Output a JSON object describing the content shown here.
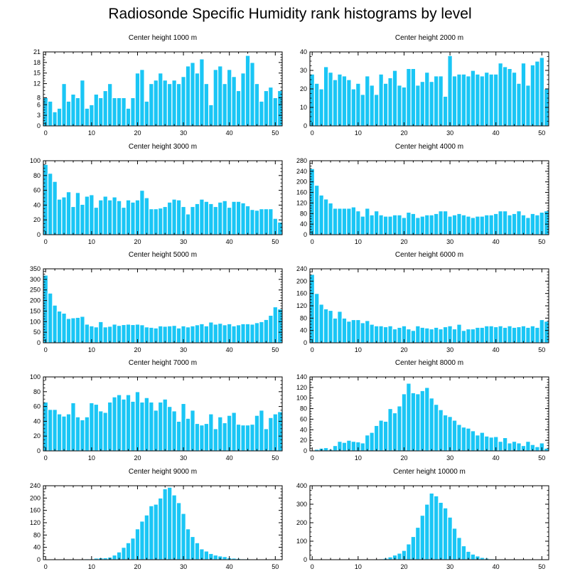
{
  "title": "Radiosonde Specific Humidity rank histograms by level",
  "colors": {
    "bar": "#1AC6F5",
    "bar_stroke": "#ffffff",
    "axis": "#000000"
  },
  "chart_data": [
    {
      "type": "bar",
      "title": "Center height 1000 m",
      "xlabel": "",
      "ylabel": "",
      "xlim": [
        -0.5,
        51.5
      ],
      "ylim": [
        0,
        21
      ],
      "xticks": [
        0,
        10,
        20,
        30,
        40,
        50
      ],
      "yticks": [
        0,
        3,
        6,
        8,
        12,
        15,
        18,
        21
      ],
      "ytick_labels": [
        "0",
        "3",
        "6",
        "8",
        "12",
        "15",
        "18",
        "21"
      ],
      "x": [
        0,
        1,
        2,
        3,
        4,
        5,
        6,
        7,
        8,
        9,
        10,
        11,
        12,
        13,
        14,
        15,
        16,
        17,
        18,
        19,
        20,
        21,
        22,
        23,
        24,
        25,
        26,
        27,
        28,
        29,
        30,
        31,
        32,
        33,
        34,
        35,
        36,
        37,
        38,
        39,
        40,
        41,
        42,
        43,
        44,
        45,
        46,
        47,
        48,
        49,
        50,
        51
      ],
      "values": [
        8,
        7,
        4,
        5,
        12,
        7,
        9,
        8,
        13,
        5,
        6,
        9,
        8,
        10,
        12,
        8,
        8,
        8,
        5,
        8,
        15,
        16,
        7,
        12,
        13,
        15,
        13,
        12,
        13,
        12,
        14,
        17,
        18,
        15,
        19,
        12,
        6,
        16,
        17,
        12,
        16,
        14,
        10,
        15,
        20,
        18,
        12,
        7,
        10,
        11,
        8,
        10
      ]
    },
    {
      "type": "bar",
      "title": "Center height 2000 m",
      "xlabel": "",
      "ylabel": "",
      "xlim": [
        -0.5,
        51.5
      ],
      "ylim": [
        0,
        40
      ],
      "xticks": [
        0,
        10,
        20,
        30,
        40,
        50
      ],
      "yticks": [
        0,
        10,
        20,
        30,
        40
      ],
      "ytick_labels": [
        "0",
        "10",
        "20",
        "30",
        "40"
      ],
      "x": [
        0,
        1,
        2,
        3,
        4,
        5,
        6,
        7,
        8,
        9,
        10,
        11,
        12,
        13,
        14,
        15,
        16,
        17,
        18,
        19,
        20,
        21,
        22,
        23,
        24,
        25,
        26,
        27,
        28,
        29,
        30,
        31,
        32,
        33,
        34,
        35,
        36,
        37,
        38,
        39,
        40,
        41,
        42,
        43,
        44,
        45,
        46,
        47,
        48,
        49,
        50,
        51
      ],
      "values": [
        28,
        23,
        20,
        32,
        29,
        25,
        28,
        27,
        25,
        20,
        23,
        17,
        27,
        22,
        17,
        28,
        23,
        26,
        30,
        22,
        21,
        31,
        31,
        22,
        24,
        29,
        24,
        27,
        27,
        16,
        38,
        27,
        28,
        28,
        27,
        30,
        28,
        27,
        29,
        28,
        28,
        34,
        32,
        31,
        29,
        23,
        34,
        22,
        33,
        35,
        37,
        20
      ]
    },
    {
      "type": "bar",
      "title": "Center height 3000 m",
      "xlabel": "",
      "ylabel": "",
      "xlim": [
        -0.5,
        51.5
      ],
      "ylim": [
        0,
        100
      ],
      "xticks": [
        0,
        10,
        20,
        30,
        40,
        50
      ],
      "yticks": [
        0,
        20,
        40,
        60,
        80,
        100
      ],
      "ytick_labels": [
        "0",
        "20",
        "40",
        "60",
        "80",
        "100"
      ],
      "x": [
        0,
        1,
        2,
        3,
        4,
        5,
        6,
        7,
        8,
        9,
        10,
        11,
        12,
        13,
        14,
        15,
        16,
        17,
        18,
        19,
        20,
        21,
        22,
        23,
        24,
        25,
        26,
        27,
        28,
        29,
        30,
        31,
        32,
        33,
        34,
        35,
        36,
        37,
        38,
        39,
        40,
        41,
        42,
        43,
        44,
        45,
        46,
        47,
        48,
        49,
        50,
        51
      ],
      "values": [
        95,
        83,
        72,
        48,
        51,
        58,
        38,
        57,
        41,
        52,
        54,
        37,
        47,
        52,
        47,
        51,
        46,
        37,
        47,
        44,
        47,
        60,
        50,
        35,
        35,
        36,
        38,
        44,
        48,
        47,
        38,
        28,
        38,
        42,
        48,
        45,
        42,
        38,
        44,
        46,
        37,
        45,
        45,
        43,
        39,
        34,
        33,
        35,
        35,
        35,
        22,
        17
      ]
    },
    {
      "type": "bar",
      "title": "Center height 4000 m",
      "xlabel": "",
      "ylabel": "",
      "xlim": [
        -0.5,
        51.5
      ],
      "ylim": [
        0,
        280
      ],
      "xticks": [
        0,
        10,
        20,
        30,
        40,
        50
      ],
      "yticks": [
        0,
        40,
        80,
        120,
        160,
        200,
        240,
        280
      ],
      "ytick_labels": [
        "0",
        "40",
        "80",
        "120",
        "160",
        "200",
        "240",
        "280"
      ],
      "x": [
        0,
        1,
        2,
        3,
        4,
        5,
        6,
        7,
        8,
        9,
        10,
        11,
        12,
        13,
        14,
        15,
        16,
        17,
        18,
        19,
        20,
        21,
        22,
        23,
        24,
        25,
        26,
        27,
        28,
        29,
        30,
        31,
        32,
        33,
        34,
        35,
        36,
        37,
        38,
        39,
        40,
        41,
        42,
        43,
        44,
        45,
        46,
        47,
        48,
        49,
        50,
        51
      ],
      "values": [
        250,
        187,
        150,
        135,
        120,
        100,
        100,
        100,
        100,
        105,
        90,
        70,
        100,
        75,
        90,
        75,
        70,
        70,
        75,
        75,
        65,
        85,
        80,
        65,
        70,
        75,
        75,
        80,
        90,
        90,
        70,
        75,
        80,
        75,
        70,
        65,
        70,
        70,
        75,
        75,
        80,
        90,
        90,
        75,
        80,
        90,
        75,
        65,
        80,
        75,
        85,
        90
      ]
    },
    {
      "type": "bar",
      "title": "Center height 5000 m",
      "xlabel": "",
      "ylabel": "",
      "xlim": [
        -0.5,
        51.5
      ],
      "ylim": [
        0,
        350
      ],
      "xticks": [
        0,
        10,
        20,
        30,
        40,
        50
      ],
      "yticks": [
        0,
        50,
        100,
        150,
        200,
        250,
        300,
        350
      ],
      "ytick_labels": [
        "0",
        "50",
        "100",
        "150",
        "200",
        "250",
        "300",
        "350"
      ],
      "x": [
        0,
        1,
        2,
        3,
        4,
        5,
        6,
        7,
        8,
        9,
        10,
        11,
        12,
        13,
        14,
        15,
        16,
        17,
        18,
        19,
        20,
        21,
        22,
        23,
        24,
        25,
        26,
        27,
        28,
        29,
        30,
        31,
        32,
        33,
        34,
        35,
        36,
        37,
        38,
        39,
        40,
        41,
        42,
        43,
        44,
        45,
        46,
        47,
        48,
        49,
        50,
        51
      ],
      "values": [
        320,
        235,
        178,
        150,
        140,
        115,
        118,
        120,
        125,
        88,
        80,
        75,
        100,
        75,
        78,
        88,
        82,
        86,
        88,
        86,
        88,
        85,
        75,
        73,
        70,
        80,
        78,
        80,
        82,
        70,
        80,
        75,
        80,
        85,
        90,
        80,
        98,
        88,
        92,
        85,
        90,
        80,
        85,
        90,
        90,
        88,
        95,
        100,
        110,
        130,
        170,
        160
      ]
    },
    {
      "type": "bar",
      "title": "Center height 6000 m",
      "xlabel": "",
      "ylabel": "",
      "xlim": [
        -0.5,
        51.5
      ],
      "ylim": [
        0,
        240
      ],
      "xticks": [
        0,
        10,
        20,
        30,
        40,
        50
      ],
      "yticks": [
        0,
        40,
        80,
        120,
        160,
        200,
        240
      ],
      "ytick_labels": [
        "0",
        "40",
        "80",
        "120",
        "160",
        "200",
        "240"
      ],
      "x": [
        0,
        1,
        2,
        3,
        4,
        5,
        6,
        7,
        8,
        9,
        10,
        11,
        12,
        13,
        14,
        15,
        16,
        17,
        18,
        19,
        20,
        21,
        22,
        23,
        24,
        25,
        26,
        27,
        28,
        29,
        30,
        31,
        32,
        33,
        34,
        35,
        36,
        37,
        38,
        39,
        40,
        41,
        42,
        43,
        44,
        45,
        46,
        47,
        48,
        49,
        50,
        51
      ],
      "values": [
        222,
        160,
        125,
        110,
        105,
        80,
        102,
        80,
        70,
        75,
        75,
        65,
        72,
        60,
        55,
        55,
        52,
        55,
        45,
        50,
        55,
        45,
        40,
        55,
        50,
        48,
        45,
        50,
        45,
        52,
        55,
        45,
        60,
        40,
        45,
        45,
        50,
        50,
        55,
        55,
        52,
        55,
        50,
        55,
        50,
        52,
        55,
        50,
        55,
        50,
        75,
        70
      ]
    },
    {
      "type": "bar",
      "title": "Center height 7000 m",
      "xlabel": "",
      "ylabel": "",
      "xlim": [
        -0.5,
        51.5
      ],
      "ylim": [
        0,
        100
      ],
      "xticks": [
        0,
        10,
        20,
        30,
        40,
        50
      ],
      "yticks": [
        0,
        20,
        40,
        60,
        80,
        100
      ],
      "ytick_labels": [
        "0",
        "20",
        "40",
        "60",
        "80",
        "100"
      ],
      "x": [
        0,
        1,
        2,
        3,
        4,
        5,
        6,
        7,
        8,
        9,
        10,
        11,
        12,
        13,
        14,
        15,
        16,
        17,
        18,
        19,
        20,
        21,
        22,
        23,
        24,
        25,
        26,
        27,
        28,
        29,
        30,
        31,
        32,
        33,
        34,
        35,
        36,
        37,
        38,
        39,
        40,
        41,
        42,
        43,
        44,
        45,
        46,
        47,
        48,
        49,
        50,
        51
      ],
      "values": [
        66,
        56,
        56,
        50,
        47,
        50,
        65,
        46,
        42,
        46,
        65,
        63,
        54,
        52,
        66,
        73,
        76,
        70,
        76,
        67,
        80,
        66,
        72,
        66,
        55,
        66,
        70,
        60,
        54,
        40,
        64,
        44,
        55,
        37,
        35,
        37,
        50,
        30,
        46,
        38,
        48,
        52,
        36,
        35,
        35,
        36,
        48,
        55,
        30,
        45,
        50,
        53
      ]
    },
    {
      "type": "bar",
      "title": "Center height 8000 m",
      "xlabel": "",
      "ylabel": "",
      "xlim": [
        -0.5,
        51.5
      ],
      "ylim": [
        0,
        140
      ],
      "xticks": [
        0,
        10,
        20,
        30,
        40,
        50
      ],
      "yticks": [
        0,
        20,
        40,
        60,
        80,
        100,
        120,
        140
      ],
      "ytick_labels": [
        "0",
        "20",
        "40",
        "60",
        "80",
        "100",
        "120",
        "140"
      ],
      "x": [
        0,
        1,
        2,
        3,
        4,
        5,
        6,
        7,
        8,
        9,
        10,
        11,
        12,
        13,
        14,
        15,
        16,
        17,
        18,
        19,
        20,
        21,
        22,
        23,
        24,
        25,
        26,
        27,
        28,
        29,
        30,
        31,
        32,
        33,
        34,
        35,
        36,
        37,
        38,
        39,
        40,
        41,
        42,
        43,
        44,
        45,
        46,
        47,
        48,
        49,
        50,
        51
      ],
      "values": [
        0,
        3,
        5,
        6,
        3,
        10,
        18,
        16,
        20,
        18,
        17,
        15,
        30,
        35,
        48,
        58,
        56,
        80,
        72,
        85,
        108,
        128,
        110,
        108,
        114,
        120,
        100,
        88,
        78,
        68,
        65,
        58,
        50,
        45,
        43,
        38,
        30,
        35,
        28,
        26,
        27,
        18,
        25,
        15,
        18,
        15,
        10,
        18,
        12,
        8,
        15,
        5
      ]
    },
    {
      "type": "bar",
      "title": "Center height 9000 m",
      "xlabel": "",
      "ylabel": "",
      "xlim": [
        -0.5,
        51.5
      ],
      "ylim": [
        0,
        240
      ],
      "xticks": [
        0,
        10,
        20,
        30,
        40,
        50
      ],
      "yticks": [
        0,
        40,
        80,
        120,
        160,
        200,
        240
      ],
      "ytick_labels": [
        "0",
        "40",
        "80",
        "120",
        "160",
        "200",
        "240"
      ],
      "x": [
        0,
        1,
        2,
        3,
        4,
        5,
        6,
        7,
        8,
        9,
        10,
        11,
        12,
        13,
        14,
        15,
        16,
        17,
        18,
        19,
        20,
        21,
        22,
        23,
        24,
        25,
        26,
        27,
        28,
        29,
        30,
        31,
        32,
        33,
        34,
        35,
        36,
        37,
        38,
        39,
        40,
        41,
        42,
        43,
        44,
        45,
        46,
        47,
        48,
        49,
        50,
        51
      ],
      "values": [
        2,
        2,
        2,
        2,
        2,
        2,
        2,
        2,
        2,
        3,
        3,
        5,
        6,
        6,
        8,
        15,
        25,
        40,
        55,
        70,
        100,
        125,
        145,
        175,
        180,
        200,
        230,
        235,
        210,
        185,
        150,
        100,
        75,
        55,
        35,
        28,
        20,
        15,
        12,
        10,
        6,
        5,
        4,
        3,
        3,
        2,
        2,
        2,
        2,
        2,
        2,
        2
      ]
    },
    {
      "type": "bar",
      "title": "Center height 10000 m",
      "xlabel": "",
      "ylabel": "",
      "xlim": [
        -0.5,
        51.5
      ],
      "ylim": [
        0,
        400
      ],
      "xticks": [
        0,
        10,
        20,
        30,
        40,
        50
      ],
      "yticks": [
        0,
        100,
        200,
        300,
        400
      ],
      "ytick_labels": [
        "0",
        "100",
        "200",
        "300",
        "400"
      ],
      "x": [
        0,
        1,
        2,
        3,
        4,
        5,
        6,
        7,
        8,
        9,
        10,
        11,
        12,
        13,
        14,
        15,
        16,
        17,
        18,
        19,
        20,
        21,
        22,
        23,
        24,
        25,
        26,
        27,
        28,
        29,
        30,
        31,
        32,
        33,
        34,
        35,
        36,
        37,
        38,
        39,
        40,
        41,
        42,
        43,
        44,
        45,
        46,
        47,
        48,
        49,
        50,
        51
      ],
      "values": [
        2,
        2,
        2,
        2,
        2,
        2,
        2,
        2,
        2,
        2,
        2,
        2,
        3,
        3,
        3,
        5,
        8,
        15,
        25,
        35,
        50,
        85,
        125,
        175,
        240,
        300,
        360,
        345,
        310,
        280,
        230,
        170,
        120,
        75,
        45,
        30,
        20,
        12,
        8,
        5,
        4,
        3,
        3,
        2,
        2,
        2,
        2,
        2,
        2,
        2,
        2,
        2
      ]
    }
  ]
}
